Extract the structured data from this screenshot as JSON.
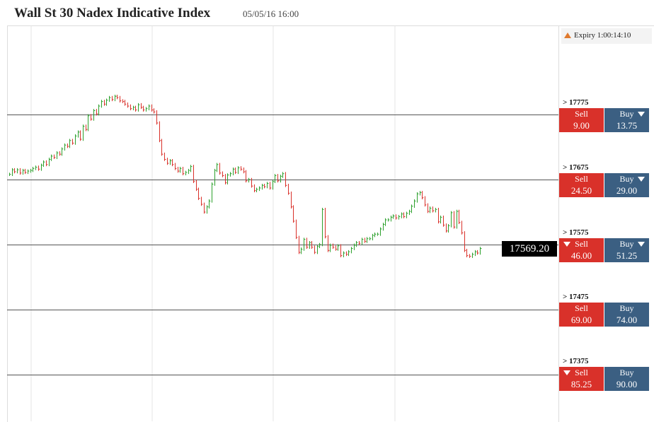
{
  "header": {
    "title": "Wall St 30 Nadex Indicative Index",
    "datetime": "05/05/16 16:00"
  },
  "expiry": {
    "label": "Expiry 1:00:14:10",
    "icon": "triangle-up-icon",
    "color": "#e07a2e"
  },
  "current_price": "17569.20",
  "colors": {
    "up": "#2ca02c",
    "down": "#d9312a",
    "sell": "#d9312a",
    "buy": "#3b5f82"
  },
  "strikes": [
    {
      "label": "> 17775",
      "sell_label": "Sell",
      "sell_value": "9.00",
      "buy_label": "Buy",
      "buy_value": "13.75",
      "sell_arrow": false,
      "buy_arrow": true
    },
    {
      "label": "> 17675",
      "sell_label": "Sell",
      "sell_value": "24.50",
      "buy_label": "Buy",
      "buy_value": "29.00",
      "sell_arrow": false,
      "buy_arrow": true
    },
    {
      "label": "> 17575",
      "sell_label": "Sell",
      "sell_value": "46.00",
      "buy_label": "Buy",
      "buy_value": "51.25",
      "sell_arrow": true,
      "buy_arrow": true
    },
    {
      "label": "> 17475",
      "sell_label": "Sell",
      "sell_value": "69.00",
      "buy_label": "Buy",
      "buy_value": "74.00",
      "sell_arrow": false,
      "buy_arrow": false
    },
    {
      "label": "> 17375",
      "sell_label": "Sell",
      "sell_value": "85.25",
      "buy_label": "Buy",
      "buy_value": "90.00",
      "sell_arrow": true,
      "buy_arrow": false
    }
  ],
  "chart_data": {
    "type": "line",
    "ylim": [
      17320,
      17840
    ],
    "strike_levels": [
      17775,
      17675,
      17575,
      17475,
      17375
    ],
    "closes": [
      17683,
      17690,
      17687,
      17690,
      17685,
      17689,
      17686,
      17688,
      17689,
      17692,
      17694,
      17691,
      17697,
      17702,
      17698,
      17706,
      17711,
      17709,
      17716,
      17714,
      17722,
      17728,
      17726,
      17735,
      17731,
      17742,
      17748,
      17737,
      17757,
      17752,
      17773,
      17768,
      17781,
      17776,
      17788,
      17795,
      17791,
      17797,
      17801,
      17798,
      17803,
      17801,
      17796,
      17795,
      17791,
      17788,
      17784,
      17786,
      17782,
      17790,
      17786,
      17782,
      17784,
      17788,
      17782,
      17779,
      17762,
      17735,
      17714,
      17706,
      17700,
      17704,
      17698,
      17692,
      17688,
      17692,
      17684,
      17686,
      17689,
      17695,
      17672,
      17660,
      17646,
      17637,
      17625,
      17633,
      17642,
      17668,
      17689,
      17698,
      17685,
      17681,
      17670,
      17682,
      17684,
      17691,
      17686,
      17693,
      17691,
      17687,
      17673,
      17675,
      17665,
      17658,
      17660,
      17662,
      17666,
      17664,
      17669,
      17662,
      17672,
      17681,
      17673,
      17680,
      17684,
      17666,
      17654,
      17633,
      17611,
      17586,
      17563,
      17568,
      17583,
      17571,
      17578,
      17571,
      17563,
      17572,
      17575,
      17629,
      17587,
      17566,
      17574,
      17571,
      17568,
      17573,
      17558,
      17562,
      17560,
      17564,
      17569,
      17574,
      17578,
      17577,
      17583,
      17580,
      17584,
      17584,
      17589,
      17591,
      17591,
      17599,
      17606,
      17613,
      17613,
      17617,
      17619,
      17616,
      17618,
      17622,
      17618,
      17623,
      17626,
      17634,
      17642,
      17653,
      17655,
      17647,
      17636,
      17626,
      17631,
      17627,
      17629,
      17610,
      17617,
      17605,
      17596,
      17604,
      17624,
      17602,
      17626,
      17609,
      17593,
      17566,
      17558,
      17557,
      17560,
      17564,
      17562,
      17569
    ],
    "grid_on": true
  }
}
